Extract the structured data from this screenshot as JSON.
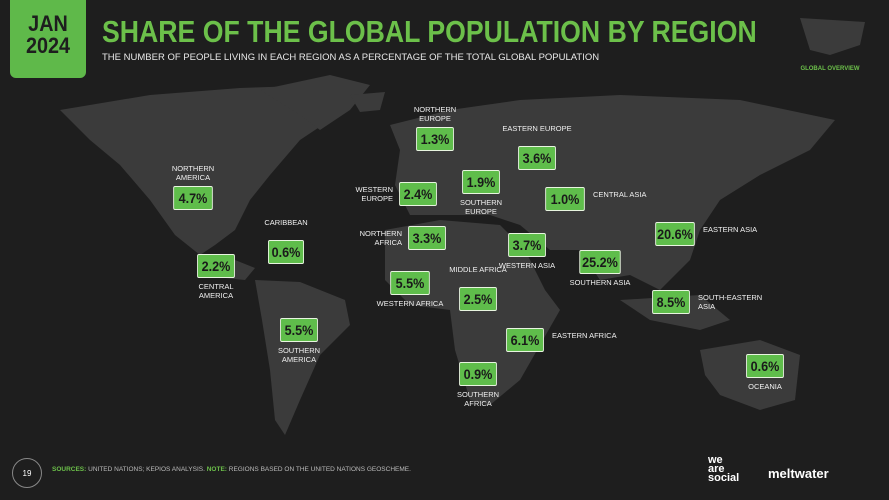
{
  "header": {
    "badge": [
      "JAN",
      "2024"
    ],
    "title": "SHARE OF THE GLOBAL POPULATION BY REGION",
    "subtitle": "THE NUMBER OF PEOPLE LIVING IN EACH REGION AS A PERCENTAGE OF THE TOTAL GLOBAL POPULATION",
    "section": "GLOBAL OVERVIEW"
  },
  "regions": [
    {
      "name": "NORTHERN AMERICA",
      "value": "4.7%"
    },
    {
      "name": "CARIBBEAN",
      "value": "0.6%"
    },
    {
      "name": "CENTRAL AMERICA",
      "value": "2.2%"
    },
    {
      "name": "SOUTHERN AMERICA",
      "value": "5.5%"
    },
    {
      "name": "NORTHERN EUROPE",
      "value": "1.3%"
    },
    {
      "name": "WESTERN EUROPE",
      "value": "2.4%"
    },
    {
      "name": "SOUTHERN EUROPE",
      "value": "1.9%"
    },
    {
      "name": "EASTERN EUROPE",
      "value": "3.6%"
    },
    {
      "name": "CENTRAL ASIA",
      "value": "1.0%"
    },
    {
      "name": "NORTHERN AFRICA",
      "value": "3.3%"
    },
    {
      "name": "WESTERN ASIA",
      "value": "3.7%"
    },
    {
      "name": "EASTERN ASIA",
      "value": "20.6%"
    },
    {
      "name": "SOUTHERN ASIA",
      "value": "25.2%"
    },
    {
      "name": "WESTERN AFRICA",
      "value": "5.5%"
    },
    {
      "name": "MIDDLE AFRICA",
      "value": "2.5%"
    },
    {
      "name": "SOUTH-EASTERN ASIA",
      "value": "8.5%"
    },
    {
      "name": "EASTERN AFRICA",
      "value": "6.1%"
    },
    {
      "name": "SOUTHERN AFRICA",
      "value": "0.9%"
    },
    {
      "name": "OCEANIA",
      "value": "0.6%"
    }
  ],
  "footer": {
    "page": "19",
    "sources_key": "SOURCES:",
    "sources": "UNITED NATIONS; KEPIOS ANALYSIS.",
    "note_key": "NOTE:",
    "note": "REGIONS BASED ON THE UNITED NATIONS GEOSCHEME.",
    "logos": [
      [
        "we",
        "are",
        "social"
      ],
      "meltwater"
    ]
  }
}
